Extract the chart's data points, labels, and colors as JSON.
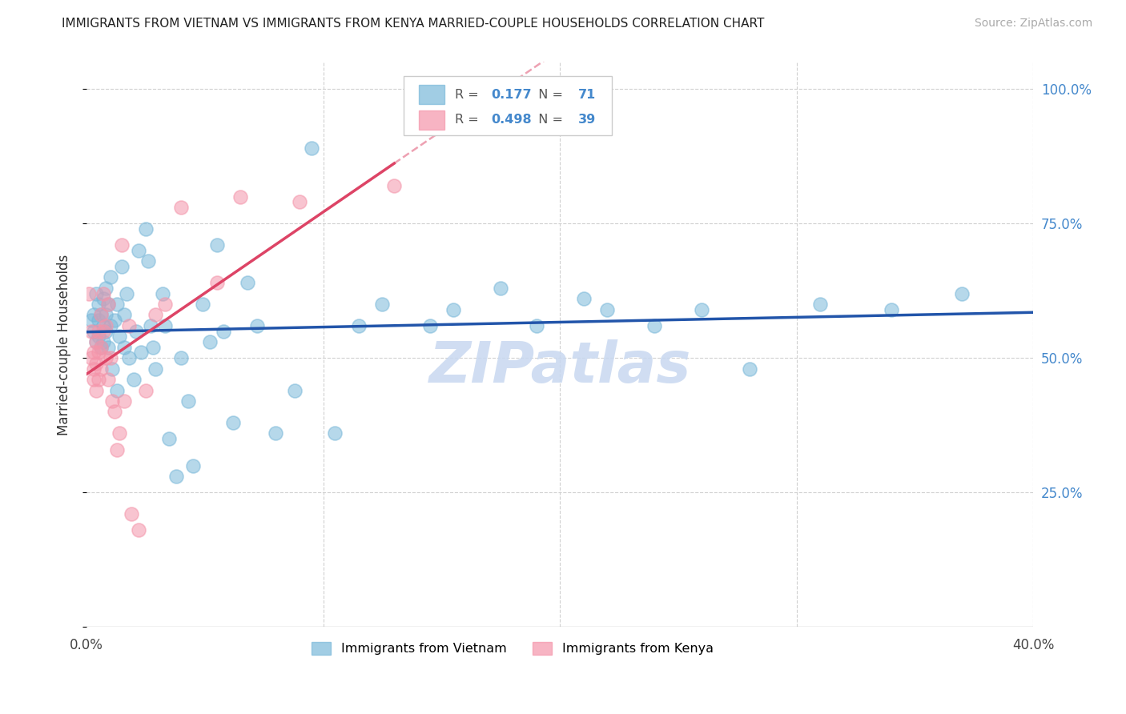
{
  "title": "IMMIGRANTS FROM VIETNAM VS IMMIGRANTS FROM KENYA MARRIED-COUPLE HOUSEHOLDS CORRELATION CHART",
  "source": "Source: ZipAtlas.com",
  "ylabel": "Married-couple Households",
  "xlim": [
    0.0,
    0.4
  ],
  "ylim": [
    0.0,
    1.05
  ],
  "yticks": [
    0.0,
    0.25,
    0.5,
    0.75,
    1.0
  ],
  "ytick_labels": [
    "",
    "25.0%",
    "50.0%",
    "75.0%",
    "100.0%"
  ],
  "xtick_positions": [
    0.0,
    0.1,
    0.2,
    0.3,
    0.4
  ],
  "xtick_labels": [
    "0.0%",
    "",
    "",
    "",
    "40.0%"
  ],
  "legend_vietnam": "Immigrants from Vietnam",
  "legend_kenya": "Immigrants from Kenya",
  "R_vietnam": "0.177",
  "N_vietnam": "71",
  "R_kenya": "0.498",
  "N_kenya": "39",
  "color_vietnam": "#7ab8d9",
  "color_kenya": "#f495aa",
  "trendline_vietnam": "#2255aa",
  "trendline_kenya": "#dd4466",
  "watermark": "ZIPatlas",
  "watermark_color": "#c8d8f0",
  "vietnam_x": [
    0.002,
    0.003,
    0.003,
    0.004,
    0.004,
    0.005,
    0.005,
    0.005,
    0.006,
    0.006,
    0.007,
    0.007,
    0.007,
    0.008,
    0.008,
    0.008,
    0.009,
    0.009,
    0.01,
    0.01,
    0.011,
    0.012,
    0.013,
    0.013,
    0.014,
    0.015,
    0.016,
    0.016,
    0.017,
    0.018,
    0.02,
    0.021,
    0.022,
    0.023,
    0.025,
    0.026,
    0.027,
    0.028,
    0.029,
    0.032,
    0.033,
    0.035,
    0.038,
    0.04,
    0.043,
    0.045,
    0.049,
    0.052,
    0.055,
    0.058,
    0.062,
    0.068,
    0.072,
    0.08,
    0.088,
    0.095,
    0.105,
    0.115,
    0.125,
    0.145,
    0.155,
    0.175,
    0.19,
    0.21,
    0.22,
    0.24,
    0.26,
    0.28,
    0.31,
    0.34,
    0.37
  ],
  "vietnam_y": [
    0.57,
    0.58,
    0.55,
    0.62,
    0.53,
    0.6,
    0.57,
    0.54,
    0.58,
    0.52,
    0.61,
    0.56,
    0.53,
    0.63,
    0.58,
    0.55,
    0.6,
    0.52,
    0.65,
    0.56,
    0.48,
    0.57,
    0.44,
    0.6,
    0.54,
    0.67,
    0.52,
    0.58,
    0.62,
    0.5,
    0.46,
    0.55,
    0.7,
    0.51,
    0.74,
    0.68,
    0.56,
    0.52,
    0.48,
    0.62,
    0.56,
    0.35,
    0.28,
    0.5,
    0.42,
    0.3,
    0.6,
    0.53,
    0.71,
    0.55,
    0.38,
    0.64,
    0.56,
    0.36,
    0.44,
    0.89,
    0.36,
    0.56,
    0.6,
    0.56,
    0.59,
    0.63,
    0.56,
    0.61,
    0.59,
    0.56,
    0.59,
    0.48,
    0.6,
    0.59,
    0.62
  ],
  "kenya_x": [
    0.001,
    0.002,
    0.002,
    0.003,
    0.003,
    0.003,
    0.004,
    0.004,
    0.004,
    0.005,
    0.005,
    0.005,
    0.006,
    0.006,
    0.006,
    0.007,
    0.007,
    0.008,
    0.008,
    0.009,
    0.009,
    0.01,
    0.011,
    0.012,
    0.013,
    0.014,
    0.015,
    0.016,
    0.018,
    0.019,
    0.022,
    0.025,
    0.029,
    0.033,
    0.04,
    0.055,
    0.065,
    0.09,
    0.13
  ],
  "kenya_y": [
    0.62,
    0.55,
    0.5,
    0.51,
    0.48,
    0.46,
    0.53,
    0.49,
    0.44,
    0.55,
    0.51,
    0.46,
    0.58,
    0.52,
    0.48,
    0.62,
    0.55,
    0.56,
    0.5,
    0.6,
    0.46,
    0.5,
    0.42,
    0.4,
    0.33,
    0.36,
    0.71,
    0.42,
    0.56,
    0.21,
    0.18,
    0.44,
    0.58,
    0.6,
    0.78,
    0.64,
    0.8,
    0.79,
    0.82
  ]
}
